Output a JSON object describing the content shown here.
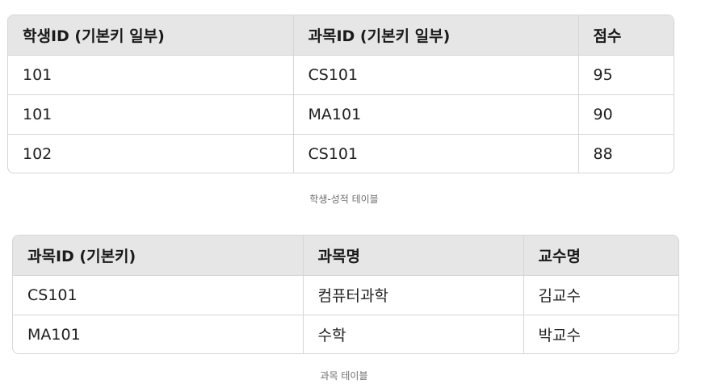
{
  "table1": {
    "headers": [
      "학생ID (기본키 일부)",
      "과목ID (기본키 일부)",
      "점수"
    ],
    "rows": [
      [
        "101",
        "CS101",
        "95"
      ],
      [
        "101",
        "MA101",
        "90"
      ],
      [
        "102",
        "CS101",
        "88"
      ]
    ],
    "caption": "학생-성적 테이블"
  },
  "table2": {
    "headers": [
      "과목ID (기본키)",
      "과목명",
      "교수명"
    ],
    "rows": [
      [
        "CS101",
        "컴퓨터과학",
        "김교수"
      ],
      [
        "MA101",
        "수학",
        "박교수"
      ]
    ],
    "caption": "과목 테이블"
  }
}
